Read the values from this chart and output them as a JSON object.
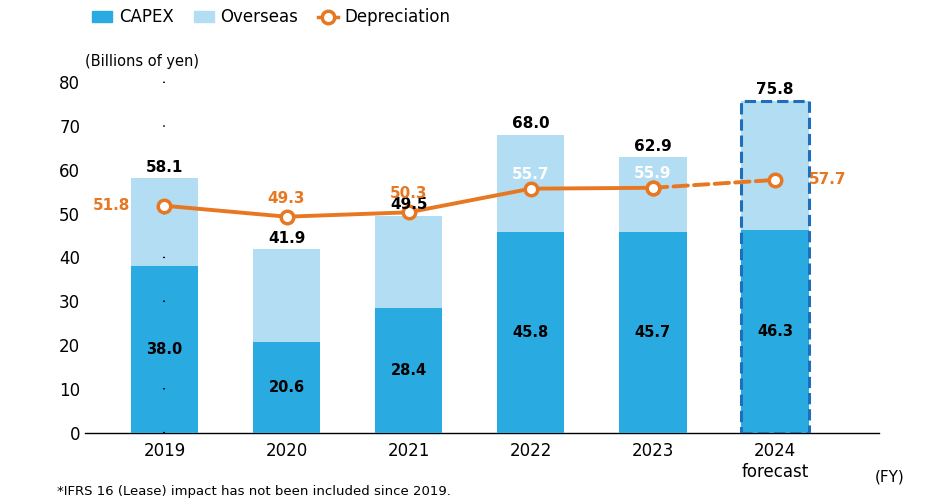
{
  "years": [
    "2019",
    "2020",
    "2021",
    "2022",
    "2023",
    "2024\nforecast"
  ],
  "capex_domestic": [
    38.0,
    20.6,
    28.4,
    45.8,
    45.7,
    46.3
  ],
  "capex_overseas": [
    20.1,
    21.3,
    21.1,
    22.2,
    17.2,
    29.5
  ],
  "capex_total": [
    58.1,
    41.9,
    49.5,
    68.0,
    62.9,
    75.8
  ],
  "depreciation": [
    51.8,
    49.3,
    50.3,
    55.7,
    55.9,
    57.7
  ],
  "color_domestic": "#29abe2",
  "color_overseas": "#b3ddf2",
  "color_depreciation": "#e87722",
  "bar_width": 0.55,
  "ylim": [
    0,
    85
  ],
  "yticks": [
    0,
    10,
    20,
    30,
    40,
    50,
    60,
    70,
    80
  ],
  "ylabel": "(Billions of yen)",
  "footnote": "*IFRS 16 (Lease) impact has not been included since 2019.",
  "fy_label": "(FY)",
  "legend_capex": "CAPEX",
  "legend_overseas": "Overseas",
  "legend_depreciation": "Depreciation",
  "forecast_dash_color": "#1e6fba"
}
